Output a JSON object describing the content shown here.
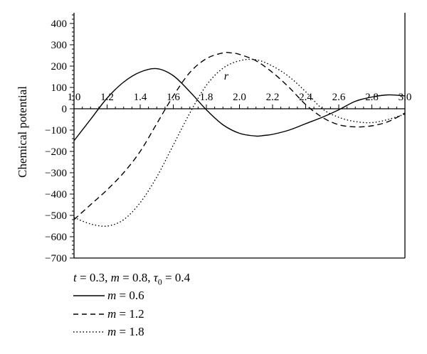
{
  "chart_data": {
    "type": "line",
    "ylabel": "Chemical potential",
    "xlabel": "r",
    "xlim": [
      1.0,
      3.0
    ],
    "ylim": [
      -700,
      450
    ],
    "x_ticks": [
      "1.0",
      "1.2",
      "1.4",
      "1.6",
      "1.8",
      "2.0",
      "2.2",
      "2.4",
      "2.6",
      "2.8",
      "3.0"
    ],
    "y_ticks": [
      "400",
      "300",
      "200",
      "100",
      "0",
      "−100",
      "−200",
      "−300",
      "−400",
      "−500",
      "−600",
      "−700"
    ],
    "parameters": {
      "t": "0.3",
      "m": "0.8",
      "tau0": "0.4"
    },
    "series": [
      {
        "name": "m = 0.6",
        "style": "solid",
        "x": [
          1.0,
          1.1,
          1.2,
          1.3,
          1.4,
          1.5,
          1.6,
          1.7,
          1.8,
          1.9,
          2.0,
          2.1,
          2.15,
          2.2,
          2.3,
          2.4,
          2.5,
          2.6,
          2.7,
          2.8,
          2.9,
          3.0
        ],
        "y": [
          -150,
          -50,
          50,
          125,
          172,
          188,
          155,
          80,
          -5,
          -75,
          -115,
          -128,
          -125,
          -120,
          -100,
          -70,
          -40,
          -5,
          35,
          55,
          65,
          60
        ]
      },
      {
        "name": "m = 1.2",
        "style": "dashed",
        "x": [
          1.0,
          1.1,
          1.2,
          1.3,
          1.4,
          1.5,
          1.6,
          1.7,
          1.8,
          1.9,
          1.95,
          2.0,
          2.1,
          2.2,
          2.3,
          2.4,
          2.5,
          2.6,
          2.7,
          2.8,
          2.9,
          3.0
        ],
        "y": [
          -520,
          -450,
          -380,
          -300,
          -200,
          -70,
          60,
          170,
          235,
          262,
          262,
          255,
          225,
          170,
          100,
          20,
          -40,
          -75,
          -85,
          -80,
          -60,
          -20
        ]
      },
      {
        "name": "m = 1.8",
        "style": "dotted",
        "x": [
          1.0,
          1.1,
          1.2,
          1.3,
          1.4,
          1.5,
          1.6,
          1.7,
          1.8,
          1.9,
          2.0,
          2.1,
          2.2,
          2.3,
          2.4,
          2.5,
          2.6,
          2.7,
          2.8,
          2.9,
          3.0
        ],
        "y": [
          -510,
          -540,
          -550,
          -520,
          -440,
          -320,
          -170,
          -20,
          110,
          190,
          225,
          230,
          200,
          150,
          80,
          0,
          -40,
          -60,
          -65,
          -50,
          -25
        ]
      }
    ]
  },
  "legend": {
    "parameters_label": "t = 0.3, m = 0.8, τ0 = 0.4",
    "items": [
      {
        "label": "m = 0.6",
        "style": "solid"
      },
      {
        "label": "m = 1.2",
        "style": "dashed"
      },
      {
        "label": "m = 1.8",
        "style": "dotted"
      }
    ]
  }
}
